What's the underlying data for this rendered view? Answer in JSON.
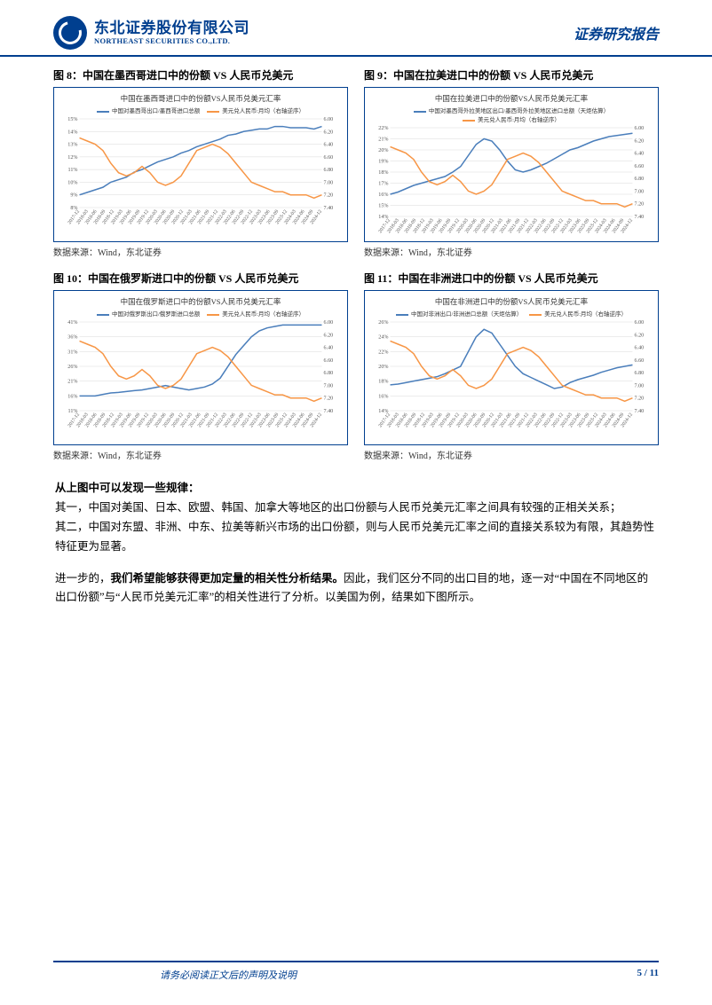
{
  "header": {
    "logo_cn": "东北证券股份有限公司",
    "logo_en": "NORTHEAST SECURITIES CO.,LTD.",
    "report_type": "证券研究报告"
  },
  "charts": [
    {
      "fig_label": "图 8：中国在墨西哥进口中的份额 VS 人民币兑美元",
      "inner_title": "中国在墨西哥进口中的份额VS人民币兑美元汇率",
      "legend": [
        {
          "label": "中国对墨西哥出口/墨西哥进口总额",
          "color": "#4a7ebb"
        },
        {
          "label": "美元兑人民币:月均（右轴逆序）",
          "color": "#f79646"
        }
      ],
      "y_left": {
        "min": 8,
        "max": 15,
        "step": 1,
        "suffix": "%"
      },
      "y_right": {
        "min": 6.0,
        "max": 7.4,
        "step": 0.2,
        "inverted": true,
        "decimals": 2
      },
      "blue_series": [
        9,
        9.2,
        9.4,
        9.6,
        10,
        10.2,
        10.4,
        10.8,
        11,
        11.3,
        11.6,
        11.8,
        12,
        12.3,
        12.5,
        12.8,
        13,
        13.2,
        13.4,
        13.7,
        13.8,
        14,
        14.1,
        14.2,
        14.2,
        14.4,
        14.4,
        14.3,
        14.3,
        14.3,
        14.2,
        14.4
      ],
      "orange_series": [
        6.3,
        6.35,
        6.4,
        6.5,
        6.7,
        6.85,
        6.9,
        6.85,
        6.75,
        6.85,
        7.0,
        7.05,
        7.0,
        6.9,
        6.7,
        6.5,
        6.45,
        6.4,
        6.45,
        6.55,
        6.7,
        6.85,
        7.0,
        7.05,
        7.1,
        7.15,
        7.15,
        7.2,
        7.2,
        7.2,
        7.25,
        7.2
      ],
      "x_labels": [
        "2017-12",
        "2018-03",
        "2018-06",
        "2018-09",
        "2018-12",
        "2019-03",
        "2019-06",
        "2019-09",
        "2019-12",
        "2020-03",
        "2020-06",
        "2020-09",
        "2020-12",
        "2021-03",
        "2021-06",
        "2021-09",
        "2021-12",
        "2022-03",
        "2022-06",
        "2022-09",
        "2022-12",
        "2023-03",
        "2023-06",
        "2023-09",
        "2023-12",
        "2024-03",
        "2024-06",
        "2024-09",
        "2024-12"
      ],
      "source": "数据来源：Wind，东北证券"
    },
    {
      "fig_label": "图 9：中国在拉美进口中的份额 VS 人民币兑美元",
      "inner_title": "中国在拉美进口中的份额VS人民币兑美元汇率",
      "legend": [
        {
          "label": "中国对墨西哥外拉美地区出口/墨西哥外拉美地区进口总额（天炬估算）",
          "color": "#4a7ebb"
        },
        {
          "label": "美元兑人民币:月均（右轴逆序）",
          "color": "#f79646"
        }
      ],
      "y_left": {
        "min": 14,
        "max": 22,
        "step": 1,
        "suffix": "%"
      },
      "y_right": {
        "min": 6.0,
        "max": 7.4,
        "step": 0.2,
        "inverted": true,
        "decimals": 2
      },
      "blue_series": [
        16,
        16.2,
        16.5,
        16.8,
        17,
        17.2,
        17.4,
        17.6,
        18,
        18.5,
        19.5,
        20.5,
        21,
        20.8,
        20,
        19,
        18.2,
        18,
        18.2,
        18.5,
        18.8,
        19.2,
        19.6,
        20,
        20.2,
        20.5,
        20.8,
        21,
        21.2,
        21.3,
        21.4,
        21.5
      ],
      "orange_series": [
        6.3,
        6.35,
        6.4,
        6.5,
        6.7,
        6.85,
        6.9,
        6.85,
        6.75,
        6.85,
        7.0,
        7.05,
        7.0,
        6.9,
        6.7,
        6.5,
        6.45,
        6.4,
        6.45,
        6.55,
        6.7,
        6.85,
        7.0,
        7.05,
        7.1,
        7.15,
        7.15,
        7.2,
        7.2,
        7.2,
        7.25,
        7.2
      ],
      "x_labels": [
        "2017-12",
        "2018-03",
        "2018-06",
        "2018-09",
        "2018-12",
        "2019-03",
        "2019-06",
        "2019-09",
        "2019-12",
        "2020-03",
        "2020-06",
        "2020-09",
        "2020-12",
        "2021-03",
        "2021-06",
        "2021-09",
        "2021-12",
        "2022-03",
        "2022-06",
        "2022-09",
        "2022-12",
        "2023-03",
        "2023-06",
        "2023-09",
        "2023-12",
        "2024-03",
        "2024-06",
        "2024-09",
        "2024-12"
      ],
      "source": "数据来源：Wind，东北证券"
    },
    {
      "fig_label": "图 10：中国在俄罗斯进口中的份额 VS 人民币兑美元",
      "inner_title": "中国在俄罗斯进口中的份额VS人民币兑美元汇率",
      "legend": [
        {
          "label": "中国对俄罗斯出口/俄罗斯进口总额",
          "color": "#4a7ebb"
        },
        {
          "label": "美元兑人民币:月均（右轴逆序）",
          "color": "#f79646"
        }
      ],
      "y_left": {
        "min": 11,
        "max": 41,
        "step": 5,
        "suffix": "%"
      },
      "y_right": {
        "min": 6.0,
        "max": 7.4,
        "step": 0.2,
        "inverted": true,
        "decimals": 2
      },
      "blue_series": [
        16,
        16,
        16,
        16.5,
        17,
        17.2,
        17.5,
        17.8,
        18,
        18.5,
        19,
        19.5,
        19,
        18.5,
        18,
        18.5,
        19,
        20,
        22,
        26,
        30,
        33,
        36,
        38,
        39,
        39.5,
        40,
        40,
        40,
        40,
        40,
        40
      ],
      "orange_series": [
        6.3,
        6.35,
        6.4,
        6.5,
        6.7,
        6.85,
        6.9,
        6.85,
        6.75,
        6.85,
        7.0,
        7.05,
        7.0,
        6.9,
        6.7,
        6.5,
        6.45,
        6.4,
        6.45,
        6.55,
        6.7,
        6.85,
        7.0,
        7.05,
        7.1,
        7.15,
        7.15,
        7.2,
        7.2,
        7.2,
        7.25,
        7.2
      ],
      "x_labels": [
        "2017-12",
        "2018-03",
        "2018-06",
        "2018-09",
        "2018-12",
        "2019-03",
        "2019-06",
        "2019-09",
        "2019-12",
        "2020-03",
        "2020-06",
        "2020-09",
        "2020-12",
        "2021-03",
        "2021-06",
        "2021-09",
        "2021-12",
        "2022-03",
        "2022-06",
        "2022-09",
        "2022-12",
        "2023-03",
        "2023-06",
        "2023-09",
        "2023-12",
        "2024-03",
        "2024-06",
        "2024-09",
        "2024-12"
      ],
      "source": "数据来源：Wind，东北证券"
    },
    {
      "fig_label": "图 11：中国在非洲进口中的份额 VS 人民币兑美元",
      "inner_title": "中国在非洲进口中的份额VS人民币兑美元汇率",
      "legend": [
        {
          "label": "中国对非洲出口/非洲进口总额（天炬估算）",
          "color": "#4a7ebb"
        },
        {
          "label": "美元兑人民币:月均（右轴逆序）",
          "color": "#f79646"
        }
      ],
      "y_left": {
        "min": 14,
        "max": 26,
        "step": 2,
        "suffix": "%"
      },
      "y_right": {
        "min": 6.0,
        "max": 7.4,
        "step": 0.2,
        "inverted": true,
        "decimals": 2
      },
      "blue_series": [
        17.5,
        17.6,
        17.8,
        18,
        18.2,
        18.4,
        18.6,
        19,
        19.5,
        20,
        22,
        24,
        25,
        24.5,
        23,
        21.5,
        20,
        19,
        18.5,
        18,
        17.5,
        17,
        17.2,
        17.8,
        18.2,
        18.5,
        18.8,
        19.2,
        19.5,
        19.8,
        20,
        20.2
      ],
      "orange_series": [
        6.3,
        6.35,
        6.4,
        6.5,
        6.7,
        6.85,
        6.9,
        6.85,
        6.75,
        6.85,
        7.0,
        7.05,
        7.0,
        6.9,
        6.7,
        6.5,
        6.45,
        6.4,
        6.45,
        6.55,
        6.7,
        6.85,
        7.0,
        7.05,
        7.1,
        7.15,
        7.15,
        7.2,
        7.2,
        7.2,
        7.25,
        7.2
      ],
      "x_labels": [
        "2017-12",
        "2018-03",
        "2018-06",
        "2018-09",
        "2018-12",
        "2019-03",
        "2019-06",
        "2019-09",
        "2019-12",
        "2020-03",
        "2020-06",
        "2020-09",
        "2020-12",
        "2021-03",
        "2021-06",
        "2021-09",
        "2021-12",
        "2022-03",
        "2022-06",
        "2022-09",
        "2022-12",
        "2023-03",
        "2023-06",
        "2023-09",
        "2023-12",
        "2024-03",
        "2024-06",
        "2024-09",
        "2024-12"
      ],
      "source": "数据来源：Wind，东北证券"
    }
  ],
  "body": {
    "p1": "从上图中可以发现一些规律：",
    "p2": "其一，中国对美国、日本、欧盟、韩国、加拿大等地区的出口份额与人民币兑美元汇率之间具有较强的正相关关系；",
    "p3": "其二，中国对东盟、非洲、中东、拉美等新兴市场的出口份额，则与人民币兑美元汇率之间的直接关系较为有限，其趋势性特征更为显著。",
    "p4a": "进一步的，",
    "p4b": "我们希望能够获得更加定量的相关性分析结果。",
    "p4c": "因此，我们区分不同的出口目的地，逐一对“中国在不同地区的出口份额”与“人民币兑美元汇率”的相关性进行了分析。以美国为例，结果如下图所示。"
  },
  "footer": {
    "note": "请务必阅读正文后的声明及说明",
    "page": "5 / 11"
  },
  "style": {
    "blue_color": "#4a7ebb",
    "orange_color": "#f79646",
    "grid_color": "#d9d9d9",
    "axis_font_size": 6,
    "brand_color": "#003f8f"
  }
}
